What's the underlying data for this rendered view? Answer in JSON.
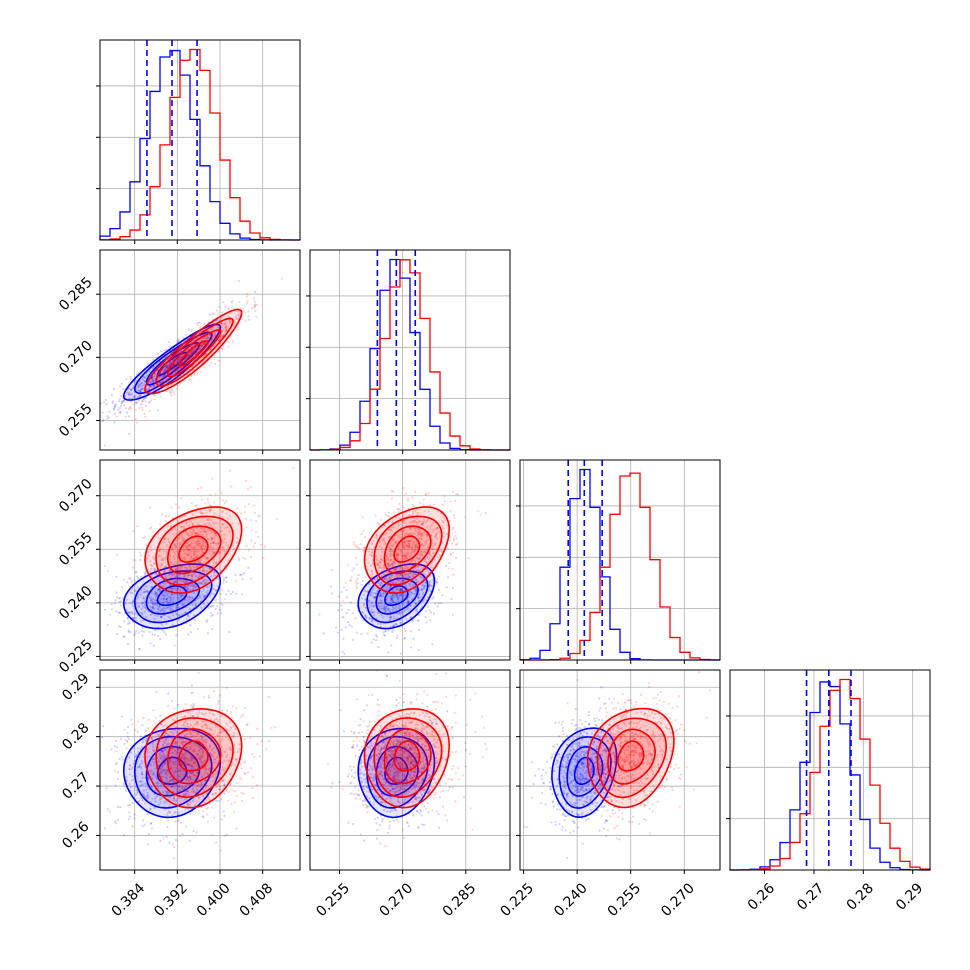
{
  "chart_data": {
    "type": "corner",
    "series_colors": {
      "blue": "#0000ff",
      "red": "#ff0000"
    },
    "grid": true,
    "parameters": [
      {
        "range": [
          0.3775,
          0.415
        ],
        "ticks": [
          "0.384",
          "0.392",
          "0.400",
          "0.408"
        ],
        "tick_values": [
          0.384,
          0.392,
          0.4,
          0.408
        ],
        "blue_mean": 0.391,
        "blue_sd": 0.0045,
        "red_mean": 0.395,
        "red_sd": 0.0045,
        "quantiles": [
          0.3863,
          0.391,
          0.3957
        ]
      },
      {
        "range": [
          0.248,
          0.2955
        ],
        "ticks": [
          "0.255",
          "0.270",
          "0.285"
        ],
        "tick_values": [
          0.255,
          0.27,
          0.285
        ],
        "blue_mean": 0.2685,
        "blue_sd": 0.0045,
        "red_mean": 0.271,
        "red_sd": 0.005,
        "quantiles": [
          0.264,
          0.2685,
          0.273
        ]
      },
      {
        "range": [
          0.224,
          0.28
        ],
        "ticks": [
          "0.225",
          "0.240",
          "0.255",
          "0.270"
        ],
        "tick_values": [
          0.225,
          0.24,
          0.255,
          0.27
        ],
        "blue_mean": 0.242,
        "blue_sd": 0.0045,
        "red_mean": 0.255,
        "red_sd": 0.006,
        "quantiles": [
          0.2375,
          0.242,
          0.247
        ]
      },
      {
        "range": [
          0.253,
          0.2935
        ],
        "ticks": [
          "0.26",
          "0.27",
          "0.28",
          "0.29"
        ],
        "tick_values": [
          0.26,
          0.27,
          0.28,
          0.29
        ],
        "blue_mean": 0.273,
        "blue_sd": 0.0045,
        "red_mean": 0.276,
        "red_sd": 0.005,
        "quantiles": [
          0.2685,
          0.273,
          0.2775
        ]
      }
    ],
    "correlations": {
      "1_0": {
        "blue": 0.9,
        "red": 0.9
      },
      "2_0": {
        "blue": 0.35,
        "red": 0.35
      },
      "2_1": {
        "blue": 0.35,
        "red": 0.35
      },
      "3_0": {
        "blue": 0.1,
        "red": 0.1
      },
      "3_1": {
        "blue": 0.1,
        "red": 0.1
      },
      "3_2": {
        "blue": 0.2,
        "red": 0.2
      }
    }
  }
}
